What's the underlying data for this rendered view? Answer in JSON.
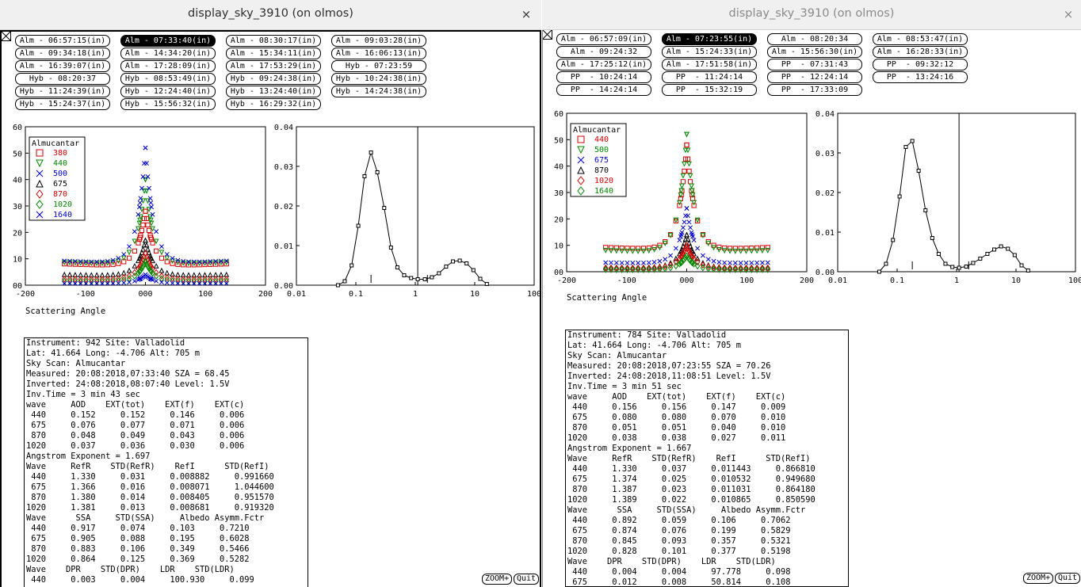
{
  "colors": {
    "red": "#d40000",
    "green": "#008800",
    "blue": "#0000cc",
    "black": "#000000"
  },
  "windows": [
    {
      "title": "display_sky_3910 (on olmos)",
      "close_label": "×",
      "buttons": [
        {
          "label": "Alm - 06:57:15(in)",
          "selected": false
        },
        {
          "label": "Alm - 07:33:40(in)",
          "selected": true
        },
        {
          "label": "Alm - 08:30:17(in)",
          "selected": false
        },
        {
          "label": "Alm - 09:03:28(in)",
          "selected": false
        },
        {
          "label": "Alm - 09:34:18(in)",
          "selected": false
        },
        {
          "label": "Alm - 14:34:20(in)",
          "selected": false
        },
        {
          "label": "Alm - 15:34:11(in)",
          "selected": false
        },
        {
          "label": "Alm - 16:06:13(in)",
          "selected": false
        },
        {
          "label": "Alm - 16:39:07(in)",
          "selected": false
        },
        {
          "label": "Alm - 17:28:09(in)",
          "selected": false
        },
        {
          "label": "Alm - 17:53:29(in)",
          "selected": false
        },
        {
          "label": "Hyb - 07:23:59",
          "selected": false
        },
        {
          "label": "Hyb - 08:20:37",
          "selected": false
        },
        {
          "label": "Hyb - 08:53:49(in)",
          "selected": false
        },
        {
          "label": "Hyb - 09:24:38(in)",
          "selected": false
        },
        {
          "label": "Hyb - 10:24:38(in)",
          "selected": false
        },
        {
          "label": "Hyb - 11:24:39(in)",
          "selected": false
        },
        {
          "label": "Hyb - 12:24:40(in)",
          "selected": false
        },
        {
          "label": "Hyb - 13:24:40(in)",
          "selected": false
        },
        {
          "label": "Hyb - 14:24:38(in)",
          "selected": false
        },
        {
          "label": "Hyb - 15:24:37(in)",
          "selected": false
        },
        {
          "label": "Hyb - 15:56:32(in)",
          "selected": false
        },
        {
          "label": "Hyb - 16:29:32(in)",
          "selected": false
        }
      ],
      "sky_chart": {
        "xlabel": "Scattering Angle",
        "xticks": [
          "-200",
          "-100",
          "000",
          "100",
          "200"
        ],
        "yticks": [
          "00",
          "10",
          "20",
          "30",
          "40",
          "50",
          "60"
        ],
        "legend_title": "Almucantar",
        "legend": [
          {
            "label": "380",
            "color": "#d40000",
            "marker": "square"
          },
          {
            "label": "440",
            "color": "#008800",
            "marker": "triangle"
          },
          {
            "label": "500",
            "color": "#0000cc",
            "marker": "x"
          },
          {
            "label": "675",
            "color": "#000000",
            "marker": "triangle-up"
          },
          {
            "label": "870",
            "color": "#d40000",
            "marker": "diamond"
          },
          {
            "label": "1020",
            "color": "#008800",
            "marker": "diamond"
          },
          {
            "label": "1640",
            "color": "#0000cc",
            "marker": "x"
          }
        ]
      },
      "size_chart": {
        "xticks": [
          "0.01",
          "0.1",
          "1",
          "10",
          "100"
        ],
        "yticks": [
          "0.00",
          "0.01",
          "0.02",
          "0.03",
          "0.04"
        ]
      },
      "info_lines": [
        "Instrument: 942 Site: Valladolid",
        "Lat: 41.664 Long: -4.706 Alt: 705 m",
        "Sky Scan: Almucantar",
        "Measured: 20:08:2018,07:33:40 SZA = 68.45",
        "Inverted: 24:08:2018,08:07:40 Level: 1.5V",
        "Inv.Time = 3 min 43 sec",
        "wave     AOD    EXT(tot)    EXT(f)    EXT(c)",
        " 440     0.152     0.152     0.146     0.006",
        " 675     0.076     0.077     0.071     0.006",
        " 870     0.048     0.049     0.043     0.006",
        "1020     0.037     0.036     0.030     0.006",
        "Angstrom Exponent = 1.697",
        "Wave     RefR    STD(RefR)    RefI      STD(RefI)",
        " 440     1.330     0.031     0.008882     0.991660",
        " 675     1.366     0.016     0.008071     1.044600",
        " 870     1.380     0.014     0.008405     0.951570",
        "1020     1.381     0.013     0.008681     0.919320",
        "Wave      SSA     STD(SSA)     Albedo Asymm.Fctr",
        " 440     0.917     0.074     0.103     0.7210",
        " 675     0.905     0.088     0.195     0.6028",
        " 870     0.883     0.106     0.349     0.5466",
        "1020     0.864     0.125     0.369     0.5282",
        "Wave    DPR    STD(DPR)    LDR    STD(LDR)",
        " 440     0.003     0.004     100.930     0.099"
      ],
      "zoom_label": "ZOOM+",
      "quit_label": "Quit"
    },
    {
      "title": "display_sky_3910 (on olmos)",
      "close_label": "×",
      "buttons": [
        {
          "label": "Alm - 06:57:09(in)",
          "selected": false
        },
        {
          "label": "Alm - 07:23:55(in)",
          "selected": true
        },
        {
          "label": "Alm - 08:20:34",
          "selected": false
        },
        {
          "label": "Alm - 08:53:47(in)",
          "selected": false
        },
        {
          "label": "Alm - 09:24:32",
          "selected": false
        },
        {
          "label": "Alm - 15:24:33(in)",
          "selected": false
        },
        {
          "label": "Alm - 15:56:30(in)",
          "selected": false
        },
        {
          "label": "Alm - 16:28:33(in)",
          "selected": false
        },
        {
          "label": "Alm - 17:25:12(in)",
          "selected": false
        },
        {
          "label": "Alm - 17:51:58(in)",
          "selected": false
        },
        {
          "label": "PP  - 07:31:43",
          "selected": false
        },
        {
          "label": "PP  - 09:32:12",
          "selected": false
        },
        {
          "label": "PP  - 10:24:14",
          "selected": false
        },
        {
          "label": "PP  - 11:24:14",
          "selected": false
        },
        {
          "label": "PP  - 12:24:14",
          "selected": false
        },
        {
          "label": "PP  - 13:24:16",
          "selected": false
        },
        {
          "label": "PP  - 14:24:14",
          "selected": false
        },
        {
          "label": "PP  - 15:32:19",
          "selected": false
        },
        {
          "label": "PP  - 17:33:09",
          "selected": false
        }
      ],
      "sky_chart": {
        "xlabel": "Scattering Angle",
        "xticks": [
          "-200",
          "-100",
          "000",
          "100",
          "200"
        ],
        "yticks": [
          "00",
          "10",
          "20",
          "30",
          "40",
          "50",
          "60"
        ],
        "legend_title": "Almucantar",
        "legend": [
          {
            "label": "440",
            "color": "#d40000",
            "marker": "square"
          },
          {
            "label": "500",
            "color": "#008800",
            "marker": "triangle"
          },
          {
            "label": "675",
            "color": "#0000cc",
            "marker": "x"
          },
          {
            "label": "870",
            "color": "#000000",
            "marker": "triangle-up"
          },
          {
            "label": "1020",
            "color": "#d40000",
            "marker": "diamond"
          },
          {
            "label": "1640",
            "color": "#008800",
            "marker": "diamond"
          }
        ]
      },
      "size_chart": {
        "xticks": [
          "0.01",
          "0.1",
          "1",
          "10",
          "100"
        ],
        "yticks": [
          "0.00",
          "0.01",
          "0.02",
          "0.03",
          "0.04"
        ]
      },
      "info_lines": [
        "Instrument: 784 Site: Valladolid",
        "Lat: 41.664 Long: -4.706 Alt: 705 m",
        "Sky Scan: Almucantar",
        "Measured: 20:08:2018,07:23:55 SZA = 70.26",
        "Inverted: 24:08:2018,11:08:51 Level: 1.5V",
        "Inv.Time = 3 min 51 sec",
        "wave     AOD    EXT(tot)    EXT(f)    EXT(c)",
        " 440     0.156     0.156     0.147     0.009",
        " 675     0.080     0.080     0.070     0.010",
        " 870     0.051     0.051     0.040     0.010",
        "1020     0.038     0.038     0.027     0.011",
        "Angstrom Exponent = 1.667",
        "Wave     RefR    STD(RefR)    RefI      STD(RefI)",
        " 440     1.330     0.037     0.011443     0.866810",
        " 675     1.374     0.025     0.010532     0.949680",
        " 870     1.387     0.023     0.011031     0.864180",
        "1020     1.389     0.022     0.010865     0.850590",
        "Wave      SSA     STD(SSA)     Albedo Asymm.Fctr",
        " 440     0.892     0.059     0.106     0.7062",
        " 675     0.874     0.076     0.199     0.5829",
        " 870     0.845     0.093     0.357     0.5321",
        "1020     0.828     0.101     0.377     0.5198",
        "Wave    DPR    STD(DPR)    LDR    STD(LDR)",
        " 440     0.004     0.004     97.778     0.098",
        " 675     0.012     0.008     50.814     0.108"
      ],
      "zoom_label": "ZOOM+",
      "quit_label": "Quit"
    }
  ],
  "chart_data": [
    {
      "type": "scatter",
      "xlabel": "Scattering Angle",
      "xlim": [
        -200,
        200
      ],
      "ylim": [
        0,
        60
      ],
      "legend_title": "Almucantar",
      "series": [
        {
          "name": "380",
          "peak": 28,
          "wing": 7
        },
        {
          "name": "440",
          "peak": 40,
          "wing": 7.5
        },
        {
          "name": "500",
          "peak": 52,
          "wing": 8
        },
        {
          "name": "675",
          "peak": 17,
          "wing": 3.5
        },
        {
          "name": "870",
          "peak": 12,
          "wing": 2
        },
        {
          "name": "1020",
          "peak": 9,
          "wing": 1.3
        },
        {
          "name": "1640",
          "peak": 4,
          "wing": 0.6
        }
      ]
    },
    {
      "type": "line",
      "xscale": "log",
      "xlim": [
        0.01,
        100
      ],
      "ylim": [
        0,
        0.04
      ],
      "x": [
        0.05,
        0.065,
        0.085,
        0.11,
        0.14,
        0.18,
        0.23,
        0.3,
        0.39,
        0.5,
        0.65,
        0.85,
        1.1,
        1.45,
        1.9,
        2.5,
        3.3,
        4.3,
        5.6,
        7.3,
        9.5,
        12.4,
        16
      ],
      "values": [
        0.0,
        0.001,
        0.005,
        0.015,
        0.0275,
        0.0335,
        0.0285,
        0.0195,
        0.0095,
        0.0045,
        0.0025,
        0.0018,
        0.0015,
        0.0015,
        0.002,
        0.003,
        0.0047,
        0.006,
        0.0062,
        0.0055,
        0.0038,
        0.0016,
        0.0003
      ]
    },
    {
      "type": "scatter",
      "xlabel": "Scattering Angle",
      "xlim": [
        -200,
        200
      ],
      "ylim": [
        0,
        60
      ],
      "legend_title": "Almucantar",
      "series": [
        {
          "name": "440",
          "peak": 48,
          "wing": 8
        },
        {
          "name": "500",
          "peak": 52,
          "wing": 7
        },
        {
          "name": "675",
          "peak": 24,
          "wing": 3
        },
        {
          "name": "870",
          "peak": 14,
          "wing": 1.5
        },
        {
          "name": "1020",
          "peak": 10,
          "wing": 1.2
        },
        {
          "name": "1640",
          "peak": 6,
          "wing": 0.7
        }
      ]
    },
    {
      "type": "line",
      "xscale": "log",
      "xlim": [
        0.01,
        100
      ],
      "ylim": [
        0,
        0.04
      ],
      "x": [
        0.05,
        0.065,
        0.085,
        0.11,
        0.14,
        0.18,
        0.23,
        0.3,
        0.39,
        0.5,
        0.65,
        0.85,
        1.1,
        1.45,
        1.9,
        2.5,
        3.3,
        4.3,
        5.6,
        7.3,
        9.5,
        12.4,
        16
      ],
      "values": [
        0.0,
        0.002,
        0.008,
        0.019,
        0.0315,
        0.033,
        0.0255,
        0.0155,
        0.0085,
        0.0045,
        0.002,
        0.0012,
        0.001,
        0.0013,
        0.0022,
        0.0033,
        0.0045,
        0.0056,
        0.0064,
        0.0058,
        0.0042,
        0.0016,
        0.0003
      ]
    }
  ]
}
